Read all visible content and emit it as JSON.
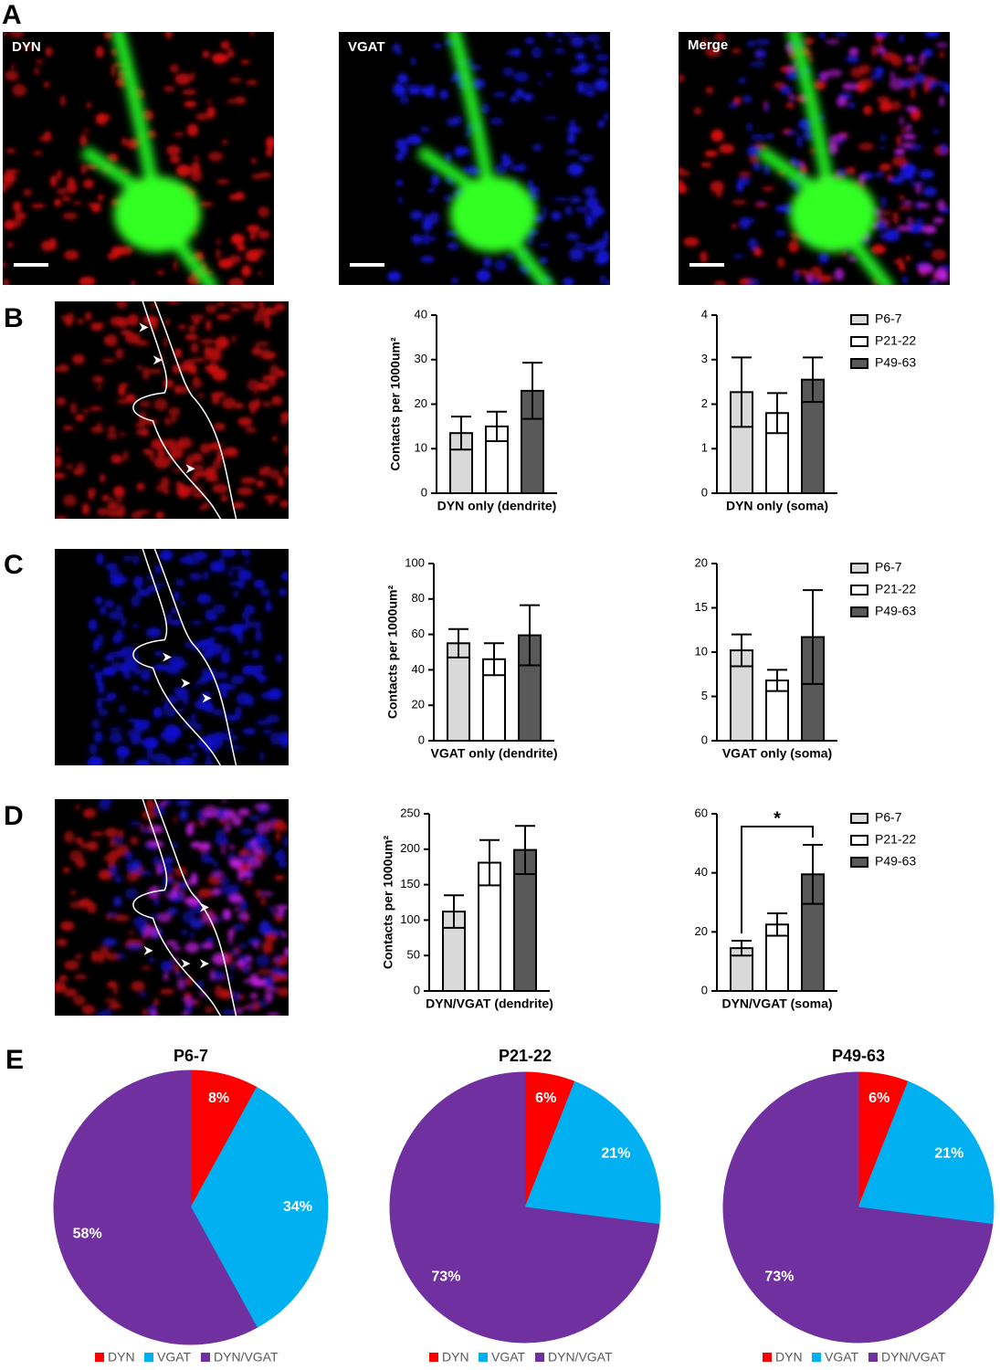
{
  "panel_labels": [
    "A",
    "B",
    "C",
    "D",
    "E"
  ],
  "image_labels": [
    "DYN",
    "VGAT",
    "Merge"
  ],
  "chart_data": [
    {
      "type": "bar",
      "xlabel": "DYN only (dendrite)",
      "ylabel": "Contacts per 1000um²",
      "categories": [
        null
      ],
      "series": [
        {
          "color": "#d9d9d9",
          "values": [
            13.5
          ],
          "errors": [
            3.7
          ]
        },
        {
          "color": "#ffffff",
          "values": [
            15
          ],
          "errors": [
            3.3
          ]
        },
        {
          "color": "#595959",
          "values": [
            23
          ],
          "errors": [
            6.3
          ]
        }
      ],
      "ylim": [
        0,
        40
      ],
      "yticks": [
        0,
        10,
        20,
        30,
        40
      ]
    },
    {
      "type": "bar",
      "xlabel": "DYN only (soma)",
      "categories": [
        null
      ],
      "series": [
        {
          "name": "P6-7",
          "color": "#d9d9d9",
          "values": [
            2.27
          ],
          "errors": [
            0.78
          ]
        },
        {
          "name": "P21-22",
          "color": "#ffffff",
          "values": [
            1.8
          ],
          "errors": [
            0.45
          ]
        },
        {
          "name": "P49-63",
          "color": "#595959",
          "values": [
            2.55
          ],
          "errors": [
            0.5
          ]
        }
      ],
      "ylim": [
        0,
        4
      ],
      "yticks": [
        0,
        1,
        2,
        3,
        4
      ],
      "legend": "right"
    },
    {
      "type": "bar",
      "xlabel": "VGAT only (dendrite)",
      "ylabel": "Contacts per 1000um²",
      "categories": [
        null
      ],
      "series": [
        {
          "color": "#d9d9d9",
          "values": [
            55
          ],
          "errors": [
            8
          ]
        },
        {
          "color": "#ffffff",
          "values": [
            46
          ],
          "errors": [
            9
          ]
        },
        {
          "color": "#595959",
          "values": [
            59.5
          ],
          "errors": [
            17
          ]
        }
      ],
      "ylim": [
        0,
        100
      ],
      "yticks": [
        0,
        20,
        40,
        60,
        80,
        100
      ]
    },
    {
      "type": "bar",
      "xlabel": "VGAT only (soma)",
      "categories": [
        null
      ],
      "series": [
        {
          "name": "P6-7",
          "color": "#d9d9d9",
          "values": [
            10.2
          ],
          "errors": [
            1.8
          ]
        },
        {
          "name": "P21-22",
          "color": "#ffffff",
          "values": [
            6.8
          ],
          "errors": [
            1.2
          ]
        },
        {
          "name": "P49-63",
          "color": "#595959",
          "values": [
            11.7
          ],
          "errors": [
            5.3
          ]
        }
      ],
      "ylim": [
        0,
        20
      ],
      "yticks": [
        0,
        5,
        10,
        15,
        20
      ],
      "legend": "right"
    },
    {
      "type": "bar",
      "xlabel": "DYN/VGAT (dendrite)",
      "ylabel": "Contacts per 1000um²",
      "categories": [
        null
      ],
      "series": [
        {
          "color": "#d9d9d9",
          "values": [
            112
          ],
          "errors": [
            23
          ]
        },
        {
          "color": "#ffffff",
          "values": [
            181
          ],
          "errors": [
            32
          ]
        },
        {
          "color": "#595959",
          "values": [
            199
          ],
          "errors": [
            34
          ]
        }
      ],
      "ylim": [
        0,
        250
      ],
      "yticks": [
        0,
        50,
        100,
        150,
        200,
        250
      ]
    },
    {
      "type": "bar",
      "xlabel": "DYN/VGAT (soma)",
      "categories": [
        null
      ],
      "annotation": "*",
      "series": [
        {
          "name": "P6-7",
          "color": "#d9d9d9",
          "values": [
            14.5
          ],
          "errors": [
            2.5
          ]
        },
        {
          "name": "P21-22",
          "color": "#ffffff",
          "values": [
            22.5
          ],
          "errors": [
            3.8
          ]
        },
        {
          "name": "P49-63",
          "color": "#595959",
          "values": [
            39.5
          ],
          "errors": [
            10
          ]
        }
      ],
      "ylim": [
        0,
        60
      ],
      "yticks": [
        0,
        20,
        40,
        60
      ],
      "legend": "right"
    },
    {
      "type": "pie",
      "title": "P6-7",
      "categories": [
        "DYN",
        "VGAT",
        "DYN/VGAT"
      ],
      "values": [
        8,
        34,
        58
      ],
      "value_labels": [
        "8%",
        "34%",
        "58%"
      ],
      "colors": [
        "#ff0000",
        "#00b0f0",
        "#7030a0"
      ],
      "legend": "bottom"
    },
    {
      "type": "pie",
      "title": "P21-22",
      "categories": [
        "DYN",
        "VGAT",
        "DYN/VGAT"
      ],
      "values": [
        6,
        21,
        73
      ],
      "value_labels": [
        "6%",
        "21%",
        "73%"
      ],
      "colors": [
        "#ff0000",
        "#00b0f0",
        "#7030a0"
      ],
      "legend": "bottom"
    },
    {
      "type": "pie",
      "title": "P49-63",
      "categories": [
        "DYN",
        "VGAT",
        "DYN/VGAT"
      ],
      "values": [
        6,
        21,
        73
      ],
      "value_labels": [
        "6%",
        "21%",
        "73%"
      ],
      "colors": [
        "#ff0000",
        "#00b0f0",
        "#7030a0"
      ],
      "legend": "bottom"
    }
  ]
}
